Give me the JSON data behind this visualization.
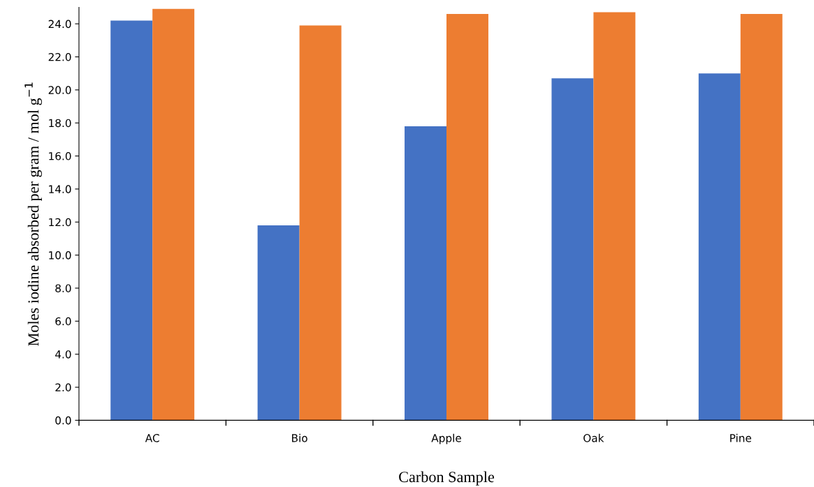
{
  "chart_data": {
    "type": "bar",
    "xlabel": "Carbon Sample",
    "ylabel": "Moles iodine absorbed per gram / mol g$^{−1}$",
    "categories": [
      "AC",
      "Bio",
      "Apple",
      "Oak",
      "Pine"
    ],
    "series": [
      {
        "color": "#4472c4",
        "values": [
          24.2,
          11.8,
          17.8,
          20.7,
          21.0
        ]
      },
      {
        "color": "#ed7d31",
        "values": [
          24.9,
          23.9,
          24.6,
          24.7,
          24.6
        ]
      }
    ],
    "ylim": [
      0,
      25
    ],
    "yticks": [
      {
        "value": 0,
        "label": "0.0"
      },
      {
        "value": 2,
        "label": "2.0"
      },
      {
        "value": 4,
        "label": "4.0"
      },
      {
        "value": 6,
        "label": "6.0"
      },
      {
        "value": 8,
        "label": "8.0"
      },
      {
        "value": 10,
        "label": "10.0"
      },
      {
        "value": 12,
        "label": "12.0"
      },
      {
        "value": 14,
        "label": "14.0"
      },
      {
        "value": 16,
        "label": "16.0"
      },
      {
        "value": 18,
        "label": "18.0"
      },
      {
        "value": 20,
        "label": "20.0"
      },
      {
        "value": 22,
        "label": "22.0"
      },
      {
        "value": 24,
        "label": "24.0"
      }
    ],
    "grid": false
  }
}
